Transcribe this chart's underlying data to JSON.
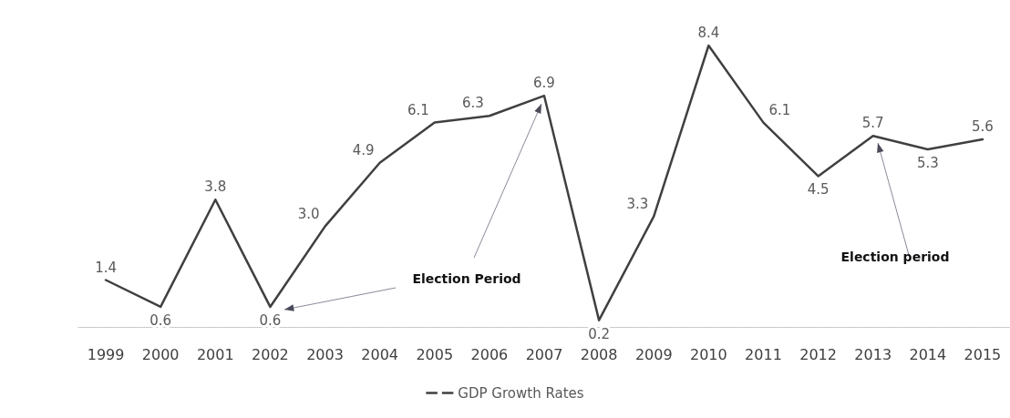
{
  "chart_data": {
    "type": "line",
    "categories": [
      "1999",
      "2000",
      "2001",
      "2002",
      "2003",
      "2004",
      "2005",
      "2006",
      "2007",
      "2008",
      "2009",
      "2010",
      "2011",
      "2012",
      "2013",
      "2014",
      "2015"
    ],
    "series": [
      {
        "name": "GDP Growth Rates",
        "color": "#404040",
        "values": [
          1.4,
          0.6,
          3.8,
          0.6,
          3.0,
          4.9,
          6.1,
          6.3,
          6.9,
          0.2,
          3.3,
          8.4,
          6.1,
          4.5,
          5.7,
          5.3,
          5.6
        ],
        "value_labels": [
          "1.4",
          "0.6",
          "3.8",
          "0.6",
          "3.0",
          "4.9",
          "6.1",
          "6.3",
          "6.9",
          "0.2",
          "3.3",
          "8.4",
          "6.1",
          "4.5",
          "5.7",
          "5.3",
          "5.6"
        ]
      }
    ],
    "marker": "none",
    "line_style": "solid",
    "grid": false,
    "legend": "bottom",
    "annotations": [
      "Election Period",
      "Election period"
    ]
  }
}
